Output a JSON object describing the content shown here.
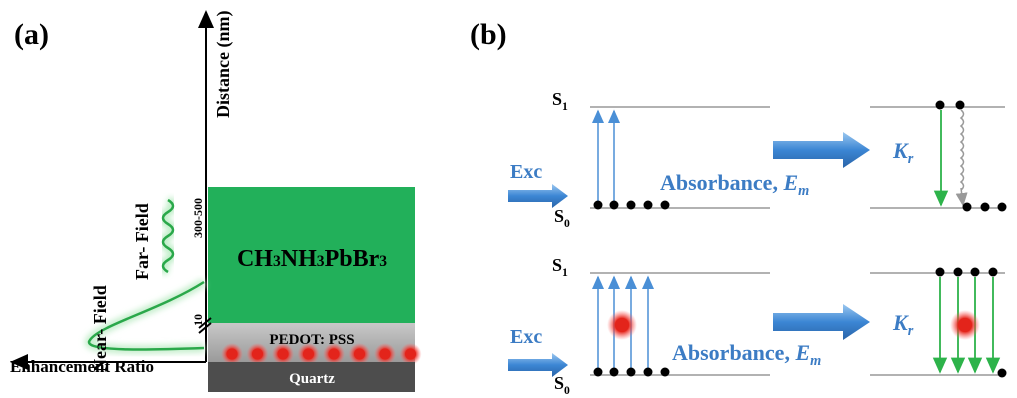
{
  "panel_a": {
    "label": "(a)",
    "axis_label": "Distance (nm)",
    "tick_high": "300-500",
    "tick_low": "10",
    "far_field": "Far- Field",
    "near_field": "Near- Field",
    "x_axis_label": "Enhancement Ratio",
    "layers": {
      "perovskite": [
        "CH",
        "3",
        "NH",
        "3",
        "PbBr",
        "3"
      ],
      "pedot": "PEDOT: PSS",
      "quartz": "Quartz"
    }
  },
  "panel_b": {
    "label": "(b)",
    "rows": [
      {
        "s1": [
          "S",
          "1"
        ],
        "s0": [
          "S",
          "0"
        ],
        "excitation": "Exc",
        "absorbance": [
          "Absorbance, ",
          "E",
          "m"
        ],
        "rate": [
          "K",
          "r"
        ]
      },
      {
        "s1": [
          "S",
          "1"
        ],
        "s0": [
          "S",
          "0"
        ],
        "excitation": "Exc",
        "absorbance": [
          "Absorbance, ",
          "E",
          "m"
        ],
        "rate": [
          "K",
          "r"
        ]
      }
    ]
  }
}
